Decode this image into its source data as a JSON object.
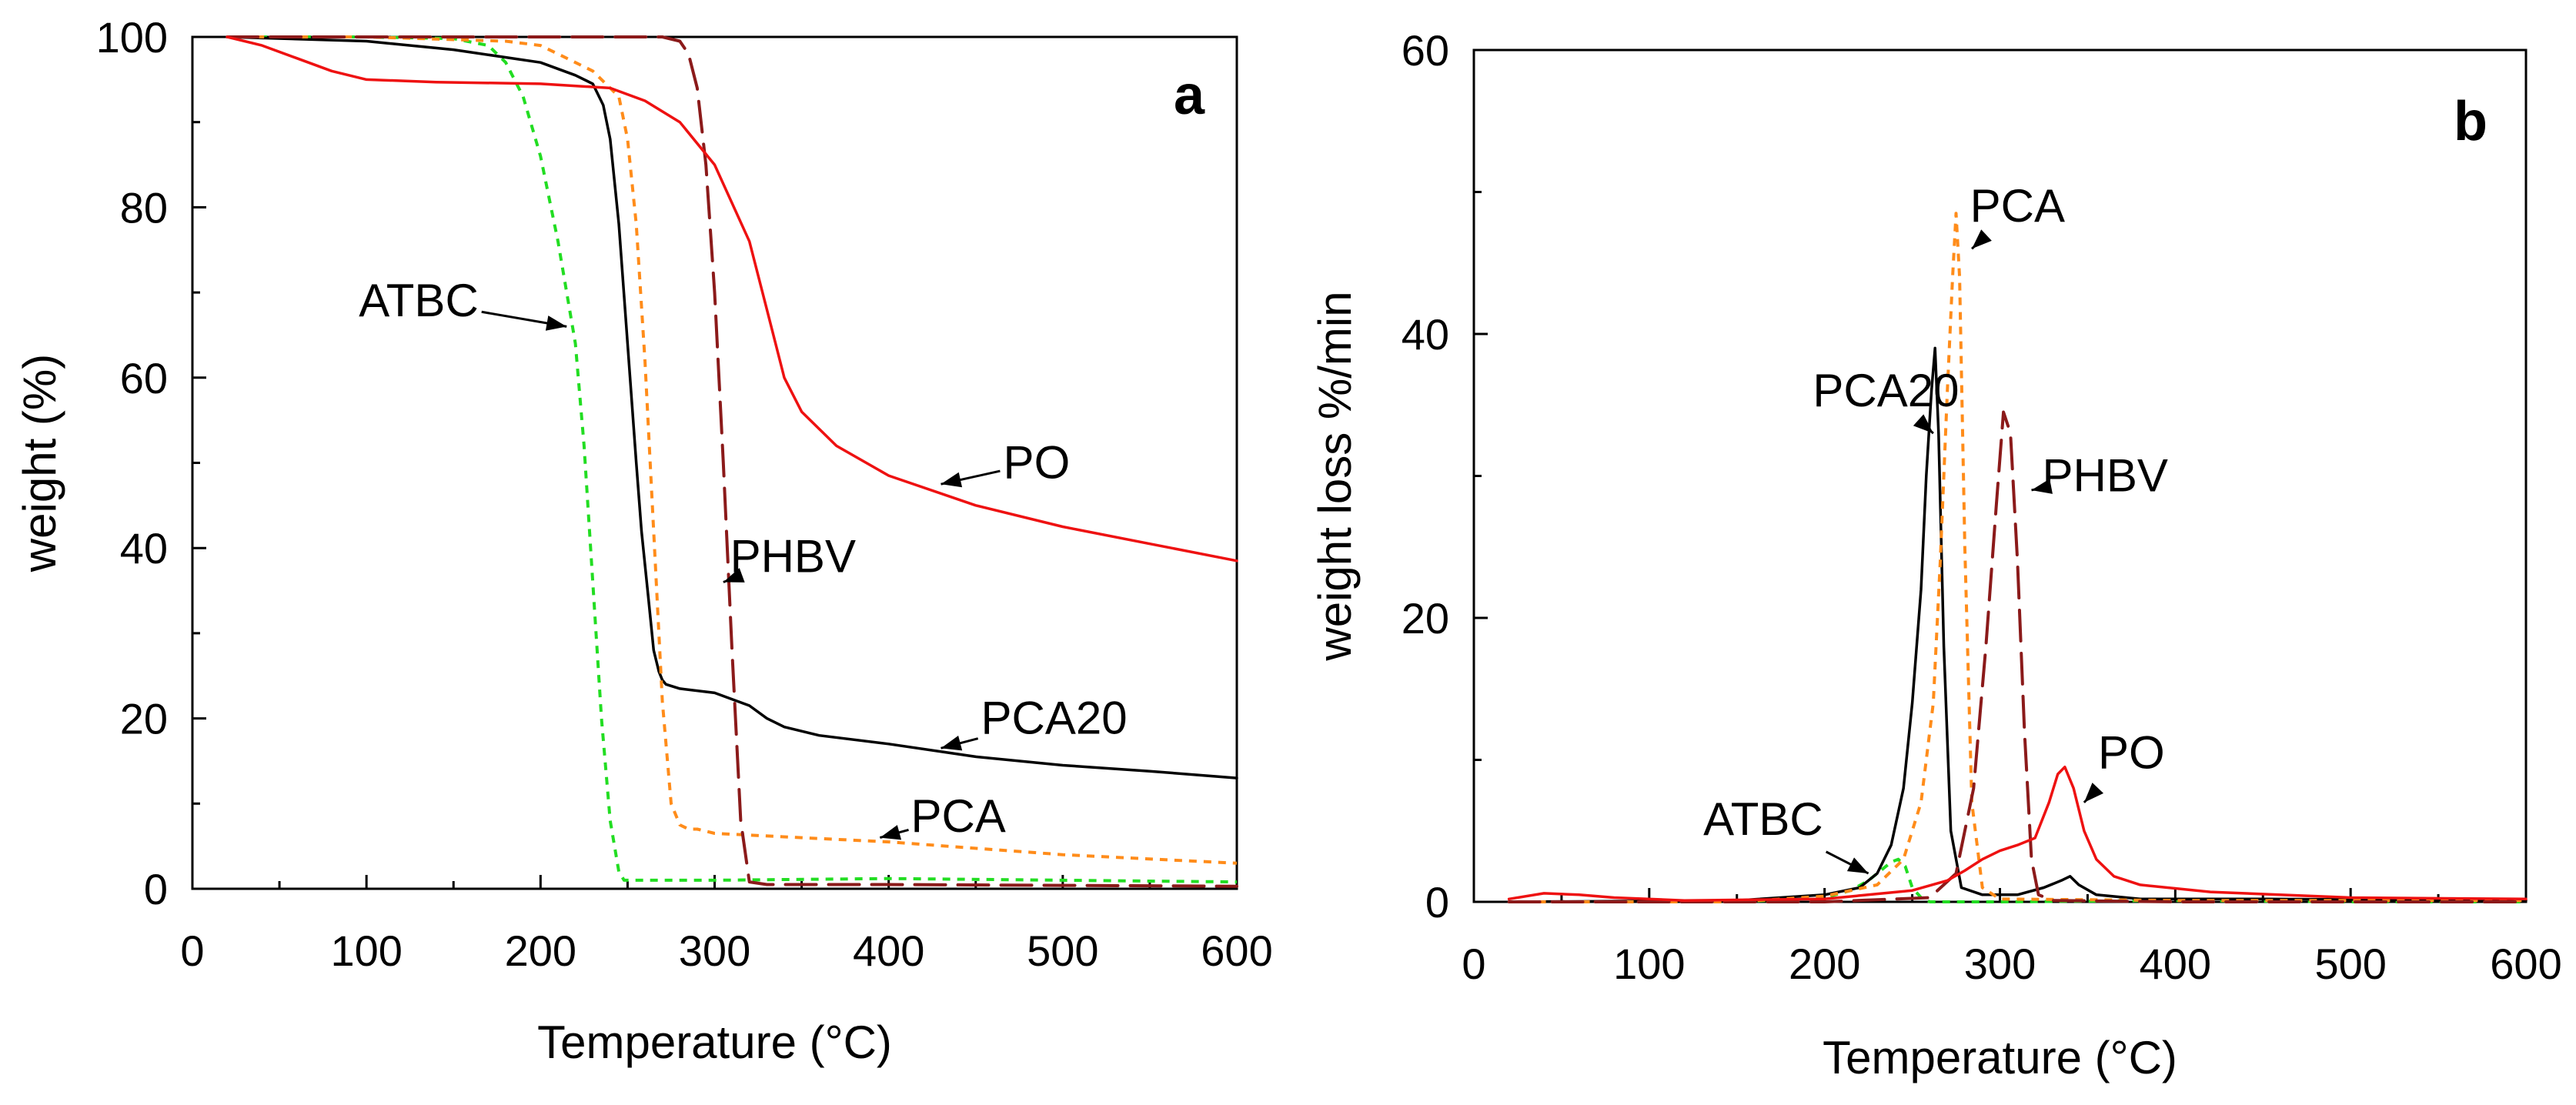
{
  "chart_data": [
    {
      "panel": "a",
      "type": "line",
      "xlabel": "Temperature (°C)",
      "ylabel": "weight (%)",
      "xlim": [
        0,
        600
      ],
      "ylim": [
        0,
        100
      ],
      "xticks": [
        0,
        100,
        200,
        300,
        400,
        500,
        600
      ],
      "yticks": [
        0,
        20,
        40,
        60,
        80,
        100
      ],
      "grid": false,
      "series": [
        {
          "name": "ATBC",
          "color": "#22dd22",
          "dash": "dotted",
          "x": [
            30,
            100,
            150,
            170,
            180,
            190,
            200,
            210,
            215,
            220,
            225,
            230,
            235,
            240,
            245,
            248,
            260,
            300,
            400,
            500,
            600
          ],
          "y": [
            100,
            100,
            99.8,
            99,
            97,
            93,
            86,
            76,
            70,
            64,
            52,
            36,
            20,
            8,
            2,
            1,
            1,
            1,
            1.2,
            1,
            0.8
          ]
        },
        {
          "name": "PCA20",
          "color": "#000000",
          "dash": "solid",
          "x": [
            20,
            100,
            150,
            200,
            220,
            230,
            236,
            240,
            245,
            250,
            255,
            258,
            262,
            265,
            268,
            270,
            272,
            280,
            300,
            320,
            330,
            340,
            360,
            400,
            450,
            500,
            550,
            600
          ],
          "y": [
            100,
            99.5,
            98.5,
            97,
            95.5,
            94.5,
            92,
            88,
            78,
            64,
            50,
            42,
            34,
            28,
            25.5,
            24.5,
            24,
            23.5,
            23,
            21.5,
            20,
            19,
            18,
            17,
            15.5,
            14.5,
            13.8,
            13
          ]
        },
        {
          "name": "PCA",
          "color": "#ff8c1a",
          "dash": "dotted",
          "x": [
            20,
            100,
            180,
            200,
            210,
            230,
            245,
            250,
            255,
            260,
            265,
            270,
            275,
            280,
            285,
            290,
            300,
            350,
            400,
            500,
            600
          ],
          "y": [
            100,
            100,
            99.5,
            99,
            98,
            96,
            93,
            88,
            78,
            62,
            42,
            22,
            10,
            7.5,
            7,
            7,
            6.5,
            6,
            5.5,
            4,
            3
          ]
        },
        {
          "name": "PHBV",
          "color": "#8b1a1a",
          "dash": "dashed",
          "x": [
            20,
            150,
            250,
            270,
            280,
            285,
            290,
            295,
            300,
            305,
            310,
            315,
            320,
            330,
            400,
            500,
            600
          ],
          "y": [
            100,
            100,
            100,
            100,
            99.5,
            98,
            94,
            85,
            70,
            50,
            28,
            8,
            0.8,
            0.5,
            0.5,
            0.4,
            0.3
          ]
        },
        {
          "name": "PO",
          "color": "#ee1111",
          "dash": "solid",
          "x": [
            20,
            40,
            60,
            80,
            100,
            140,
            200,
            240,
            260,
            280,
            300,
            320,
            330,
            340,
            350,
            370,
            400,
            450,
            500,
            550,
            600
          ],
          "y": [
            100,
            99,
            97.5,
            96,
            95,
            94.7,
            94.5,
            94,
            92.5,
            90,
            85,
            76,
            68,
            60,
            56,
            52,
            48.5,
            45,
            42.5,
            40.5,
            38.5
          ]
        }
      ],
      "annotations": [
        {
          "text": "ATBC",
          "x": 130,
          "y": 69,
          "arrow_to": [
            215,
            66
          ]
        },
        {
          "text": "PO",
          "x": 485,
          "y": 50,
          "arrow_to": [
            430,
            47.5
          ]
        },
        {
          "text": "PHBV",
          "x": 345,
          "y": 39,
          "arrow_to": [
            305,
            36
          ]
        },
        {
          "text": "PCA20",
          "x": 495,
          "y": 20,
          "arrow_to": [
            430,
            16.5
          ]
        },
        {
          "text": "PCA",
          "x": 440,
          "y": 8.5,
          "arrow_to": [
            395,
            6
          ]
        }
      ],
      "panel_letter": "a"
    },
    {
      "panel": "b",
      "type": "line",
      "xlabel": "Temperature (°C)",
      "ylabel": "weight loss %/min",
      "xlim": [
        0,
        600
      ],
      "ylim": [
        0,
        60
      ],
      "xticks": [
        0,
        100,
        200,
        300,
        400,
        500,
        600
      ],
      "yticks": [
        0,
        20,
        40,
        60
      ],
      "grid": false,
      "series": [
        {
          "name": "ATBC",
          "color": "#22dd22",
          "dash": "dotted",
          "x": [
            20,
            150,
            200,
            215,
            225,
            232,
            238,
            242,
            246,
            250,
            255,
            260,
            300,
            400,
            500,
            600
          ],
          "y": [
            0,
            0,
            0.3,
            0.8,
            1.5,
            2.2,
            2.8,
            3,
            2.5,
            1,
            0.3,
            0,
            0,
            0.1,
            0,
            0
          ]
        },
        {
          "name": "PCA20",
          "color": "#000000",
          "dash": "solid",
          "x": [
            20,
            150,
            200,
            220,
            230,
            238,
            245,
            250,
            255,
            258,
            261,
            263,
            265,
            268,
            272,
            278,
            290,
            310,
            325,
            335,
            340,
            345,
            355,
            380,
            450,
            600
          ],
          "y": [
            0,
            0.1,
            0.5,
            1,
            2,
            4,
            8,
            14,
            22,
            30,
            36,
            39,
            33,
            18,
            5,
            1,
            0.5,
            0.5,
            1,
            1.5,
            1.8,
            1.2,
            0.5,
            0.2,
            0.2,
            0.1
          ]
        },
        {
          "name": "PCA",
          "color": "#ff8c1a",
          "dash": "dotted",
          "x": [
            20,
            150,
            200,
            230,
            245,
            255,
            262,
            266,
            270,
            273,
            275,
            277,
            280,
            284,
            290,
            300,
            400,
            600
          ],
          "y": [
            0,
            0,
            0.4,
            1.2,
            3,
            7,
            14,
            24,
            36,
            44,
            48.5,
            44,
            25,
            7,
            1,
            0.2,
            0.1,
            0.1
          ]
        },
        {
          "name": "PHBV",
          "color": "#8b1a1a",
          "dash": "dashed",
          "x": [
            20,
            200,
            260,
            275,
            285,
            292,
            298,
            302,
            306,
            310,
            314,
            318,
            322,
            330,
            400,
            600
          ],
          "y": [
            0,
            0,
            0.3,
            2,
            8,
            18,
            28,
            34.5,
            33,
            24,
            12,
            3,
            0.5,
            0.1,
            0,
            0
          ]
        },
        {
          "name": "PO",
          "color": "#ee1111",
          "dash": "solid",
          "x": [
            20,
            40,
            60,
            80,
            120,
            200,
            250,
            270,
            280,
            290,
            300,
            310,
            320,
            328,
            333,
            337,
            342,
            348,
            355,
            365,
            380,
            420,
            500,
            600
          ],
          "y": [
            0.2,
            0.6,
            0.5,
            0.3,
            0.1,
            0.2,
            0.8,
            1.5,
            2.2,
            3,
            3.6,
            4,
            4.5,
            7,
            9,
            9.5,
            8,
            5,
            3,
            1.8,
            1.2,
            0.7,
            0.3,
            0.2
          ]
        }
      ],
      "annotations": [
        {
          "text": "PCA",
          "x": 310,
          "y": 49,
          "arrow_to": [
            284,
            46
          ]
        },
        {
          "text": "PCA20",
          "x": 235,
          "y": 36,
          "arrow_to": [
            262,
            33
          ]
        },
        {
          "text": "PHBV",
          "x": 360,
          "y": 30,
          "arrow_to": [
            318,
            29
          ]
        },
        {
          "text": "PO",
          "x": 375,
          "y": 10.5,
          "arrow_to": [
            348,
            7
          ]
        },
        {
          "text": "ATBC",
          "x": 165,
          "y": 5.8,
          "arrow_to": [
            225,
            2
          ]
        }
      ],
      "panel_letter": "b"
    }
  ]
}
